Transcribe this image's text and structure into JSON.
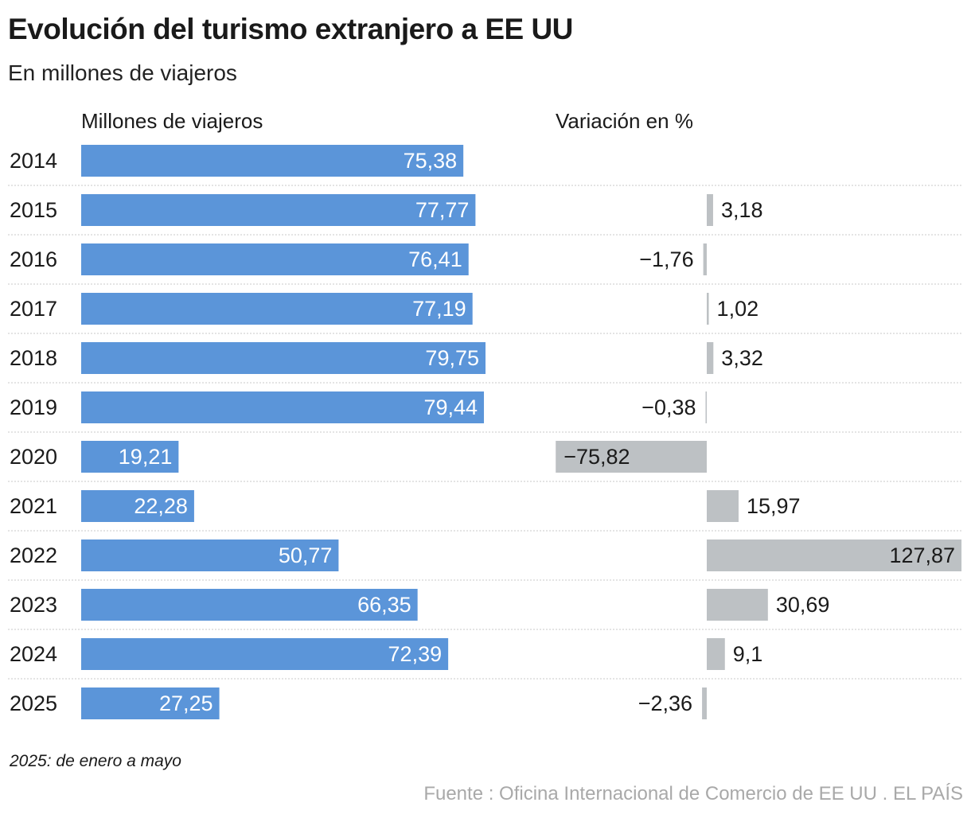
{
  "title": "Evolución del turismo extranjero a EE UU",
  "subtitle": "En millones de viajeros",
  "footnote": "2025: de enero a mayo",
  "source": "Fuente : Oficina Internacional de Comercio de EE UU . EL PAÍS",
  "chart_data": [
    {
      "type": "bar",
      "orientation": "horizontal",
      "title": "Millones de viajeros",
      "color": "#5b95d9",
      "categories": [
        "2014",
        "2015",
        "2016",
        "2017",
        "2018",
        "2019",
        "2020",
        "2021",
        "2022",
        "2023",
        "2024",
        "2025"
      ],
      "values": [
        75.38,
        77.77,
        76.41,
        77.19,
        79.75,
        79.44,
        19.21,
        22.28,
        50.77,
        66.35,
        72.39,
        27.25
      ],
      "labels": [
        "75,38",
        "77,77",
        "76,41",
        "77,19",
        "79,75",
        "79,44",
        "19,21",
        "22,28",
        "50,77",
        "66,35",
        "72,39",
        "27,25"
      ]
    },
    {
      "type": "bar",
      "orientation": "horizontal",
      "title": "Variación en %",
      "color": "#bdc1c4",
      "categories": [
        "2014",
        "2015",
        "2016",
        "2017",
        "2018",
        "2019",
        "2020",
        "2021",
        "2022",
        "2023",
        "2024",
        "2025"
      ],
      "values": [
        null,
        3.18,
        -1.76,
        1.02,
        3.32,
        -0.38,
        -75.82,
        15.97,
        127.87,
        30.69,
        9.1,
        -2.36
      ],
      "labels": [
        "",
        "3,18",
        "−1,76",
        "1,02",
        "3,32",
        "−0,38",
        "−75,82",
        "15,97",
        "127,87",
        "30,69",
        "9,1",
        "−2,36"
      ]
    }
  ]
}
